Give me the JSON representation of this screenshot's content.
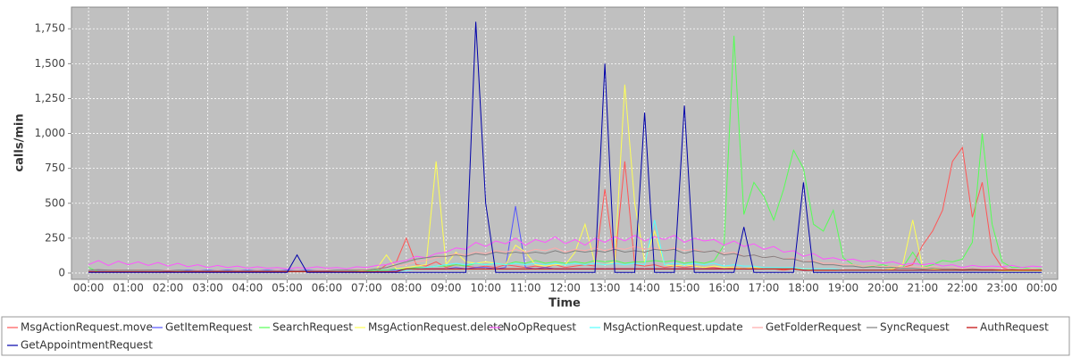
{
  "chart_data": {
    "type": "line",
    "x_label": "Time",
    "y_label": "calls/min",
    "xlim": [
      -0.43,
      24.4
    ],
    "xticks": [
      {
        "value": 0,
        "label": "00:00"
      },
      {
        "value": 1,
        "label": "01:00"
      },
      {
        "value": 2,
        "label": "02:00"
      },
      {
        "value": 3,
        "label": "03:00"
      },
      {
        "value": 4,
        "label": "04:00"
      },
      {
        "value": 5,
        "label": "05:00"
      },
      {
        "value": 6,
        "label": "06:00"
      },
      {
        "value": 7,
        "label": "07:00"
      },
      {
        "value": 8,
        "label": "08:00"
      },
      {
        "value": 9,
        "label": "09:00"
      },
      {
        "value": 10,
        "label": "10:00"
      },
      {
        "value": 11,
        "label": "11:00"
      },
      {
        "value": 12,
        "label": "12:00"
      },
      {
        "value": 13,
        "label": "13:00"
      },
      {
        "value": 14,
        "label": "14:00"
      },
      {
        "value": 15,
        "label": "15:00"
      },
      {
        "value": 16,
        "label": "16:00"
      },
      {
        "value": 17,
        "label": "17:00"
      },
      {
        "value": 18,
        "label": "18:00"
      },
      {
        "value": 19,
        "label": "19:00"
      },
      {
        "value": 20,
        "label": "20:00"
      },
      {
        "value": 21,
        "label": "21:00"
      },
      {
        "value": 22,
        "label": "22:00"
      },
      {
        "value": 23,
        "label": "23:00"
      },
      {
        "value": 24,
        "label": "00:00"
      }
    ],
    "ylim": [
      -45,
      1905
    ],
    "yticks": [
      0,
      250,
      500,
      750,
      {
        "value": 1000,
        "label": "1,000"
      },
      {
        "value": 1250,
        "label": "1,250"
      },
      {
        "value": 1500,
        "label": "1,500"
      },
      {
        "value": 1750,
        "label": "1,750"
      }
    ],
    "grid": true,
    "x": [
      0,
      0.25,
      0.5,
      0.75,
      1,
      1.25,
      1.5,
      1.75,
      2,
      2.25,
      2.5,
      2.75,
      3,
      3.25,
      3.5,
      3.75,
      4,
      4.25,
      4.5,
      4.75,
      5,
      5.25,
      5.5,
      5.75,
      6,
      6.25,
      6.5,
      6.75,
      7,
      7.25,
      7.5,
      7.75,
      8,
      8.25,
      8.5,
      8.75,
      9,
      9.25,
      9.5,
      9.75,
      10,
      10.25,
      10.5,
      10.75,
      11,
      11.25,
      11.5,
      11.75,
      12,
      12.25,
      12.5,
      12.75,
      13,
      13.25,
      13.5,
      13.75,
      14,
      14.25,
      14.5,
      14.75,
      15,
      15.25,
      15.5,
      15.75,
      16,
      16.25,
      16.5,
      16.75,
      17,
      17.25,
      17.5,
      17.75,
      18,
      18.25,
      18.5,
      18.75,
      19,
      19.25,
      19.5,
      19.75,
      20,
      20.25,
      20.5,
      20.75,
      21,
      21.25,
      21.5,
      21.75,
      22,
      22.25,
      22.5,
      22.75,
      23,
      23.25,
      23.5,
      23.75,
      24
    ],
    "series": [
      {
        "name": "MsgActionRequest.move",
        "color": "#ff5555",
        "values": [
          10,
          10,
          10,
          10,
          10,
          10,
          10,
          10,
          10,
          10,
          10,
          10,
          10,
          10,
          10,
          10,
          10,
          10,
          10,
          10,
          10,
          10,
          10,
          10,
          10,
          10,
          10,
          10,
          10,
          10,
          60,
          80,
          250,
          60,
          50,
          80,
          40,
          60,
          50,
          40,
          50,
          40,
          60,
          50,
          40,
          50,
          40,
          60,
          40,
          50,
          60,
          50,
          600,
          80,
          800,
          60,
          50,
          60,
          40,
          50,
          40,
          50,
          40,
          40,
          30,
          40,
          30,
          30,
          30,
          30,
          20,
          30,
          20,
          20,
          20,
          20,
          20,
          20,
          20,
          20,
          20,
          30,
          40,
          60,
          200,
          300,
          450,
          800,
          900,
          400,
          650,
          150,
          40,
          20,
          20,
          20,
          20
        ]
      },
      {
        "name": "GetItemRequest",
        "color": "#5555ff",
        "values": [
          20,
          20,
          20,
          20,
          20,
          20,
          20,
          20,
          20,
          20,
          20,
          20,
          20,
          20,
          20,
          20,
          20,
          20,
          20,
          20,
          20,
          20,
          20,
          20,
          20,
          20,
          20,
          20,
          20,
          20,
          20,
          20,
          30,
          30,
          30,
          30,
          30,
          40,
          30,
          40,
          40,
          30,
          40,
          480,
          40,
          30,
          40,
          30,
          30,
          30,
          30,
          30,
          30,
          30,
          30,
          30,
          30,
          30,
          30,
          30,
          30,
          30,
          30,
          30,
          30,
          30,
          30,
          30,
          30,
          30,
          30,
          30,
          20,
          20,
          20,
          20,
          20,
          20,
          20,
          20,
          20,
          20,
          20,
          20,
          20,
          20,
          20,
          20,
          20,
          20,
          20,
          20,
          20,
          20,
          20,
          20,
          20
        ]
      },
      {
        "name": "SearchRequest",
        "color": "#55ff55",
        "values": [
          40,
          10,
          10,
          10,
          10,
          10,
          10,
          10,
          10,
          10,
          10,
          10,
          10,
          10,
          10,
          10,
          10,
          10,
          10,
          10,
          10,
          10,
          10,
          10,
          10,
          10,
          10,
          15,
          15,
          20,
          20,
          30,
          30,
          40,
          40,
          50,
          50,
          60,
          50,
          70,
          60,
          70,
          60,
          80,
          70,
          90,
          70,
          80,
          70,
          80,
          70,
          90,
          80,
          90,
          70,
          80,
          80,
          90,
          80,
          90,
          70,
          80,
          70,
          90,
          200,
          1700,
          420,
          650,
          550,
          380,
          600,
          880,
          750,
          350,
          300,
          450,
          110,
          60,
          50,
          50,
          60,
          40,
          40,
          150,
          40,
          60,
          90,
          80,
          100,
          220,
          1000,
          350,
          80,
          40,
          40,
          30,
          30
        ]
      },
      {
        "name": "MsgActionRequest.delete",
        "color": "#ffff55",
        "values": [
          10,
          10,
          10,
          10,
          10,
          10,
          10,
          10,
          10,
          10,
          10,
          10,
          10,
          10,
          10,
          10,
          10,
          10,
          10,
          10,
          10,
          10,
          10,
          10,
          10,
          10,
          10,
          10,
          20,
          30,
          130,
          30,
          40,
          50,
          60,
          800,
          60,
          150,
          80,
          70,
          80,
          70,
          60,
          200,
          150,
          60,
          50,
          60,
          60,
          150,
          350,
          70,
          60,
          80,
          1350,
          500,
          80,
          300,
          60,
          50,
          60,
          50,
          40,
          50,
          40,
          40,
          30,
          40,
          30,
          30,
          30,
          30,
          30,
          20,
          20,
          20,
          20,
          20,
          20,
          20,
          20,
          30,
          60,
          380,
          40,
          30,
          20,
          20,
          20,
          20,
          20,
          20,
          15,
          15,
          15,
          15,
          15
        ]
      },
      {
        "name": "NoOpRequest",
        "color": "#ff55ff",
        "values": [
          60,
          90,
          55,
          85,
          60,
          80,
          55,
          75,
          50,
          70,
          45,
          60,
          40,
          55,
          40,
          50,
          35,
          45,
          35,
          40,
          30,
          40,
          35,
          45,
          35,
          40,
          30,
          45,
          40,
          55,
          60,
          80,
          90,
          120,
          110,
          140,
          150,
          180,
          170,
          220,
          190,
          230,
          210,
          250,
          200,
          240,
          220,
          260,
          210,
          240,
          200,
          250,
          220,
          260,
          230,
          270,
          230,
          260,
          240,
          270,
          220,
          250,
          230,
          240,
          200,
          230,
          190,
          210,
          170,
          190,
          150,
          160,
          120,
          140,
          100,
          110,
          90,
          100,
          80,
          90,
          70,
          80,
          60,
          70,
          60,
          70,
          50,
          60,
          40,
          55,
          45,
          50,
          45,
          55,
          40,
          50,
          45
        ]
      },
      {
        "name": "MsgActionRequest.update",
        "color": "#55ffff",
        "values": [
          10,
          10,
          10,
          10,
          10,
          10,
          10,
          10,
          10,
          10,
          10,
          10,
          10,
          10,
          10,
          10,
          10,
          10,
          10,
          10,
          10,
          10,
          10,
          10,
          10,
          10,
          10,
          10,
          10,
          10,
          10,
          10,
          20,
          30,
          40,
          50,
          60,
          70,
          60,
          70,
          60,
          70,
          60,
          70,
          60,
          70,
          60,
          70,
          60,
          70,
          60,
          70,
          60,
          70,
          60,
          70,
          60,
          380,
          60,
          70,
          60,
          70,
          60,
          70,
          50,
          60,
          50,
          50,
          40,
          40,
          40,
          40,
          30,
          30,
          30,
          30,
          20,
          20,
          20,
          20,
          20,
          20,
          20,
          20,
          20,
          20,
          20,
          20,
          20,
          20,
          20,
          20,
          20,
          20,
          20,
          20,
          20
        ]
      },
      {
        "name": "GetFolderRequest",
        "color": "#ffaaaa",
        "values": [
          20,
          25,
          20,
          25,
          20,
          25,
          20,
          20,
          20,
          20,
          15,
          20,
          15,
          20,
          15,
          20,
          15,
          20,
          15,
          20,
          15,
          20,
          15,
          20,
          20,
          20,
          20,
          25,
          25,
          30,
          40,
          50,
          60,
          80,
          90,
          110,
          120,
          140,
          130,
          150,
          140,
          160,
          150,
          170,
          150,
          170,
          160,
          180,
          150,
          170,
          160,
          180,
          160,
          180,
          170,
          190,
          170,
          180,
          160,
          180,
          160,
          170,
          150,
          160,
          140,
          150,
          120,
          130,
          110,
          120,
          100,
          110,
          80,
          90,
          70,
          70,
          60,
          60,
          50,
          55,
          45,
          50,
          40,
          45,
          40,
          45,
          35,
          40,
          30,
          35,
          30,
          30,
          25,
          30,
          25,
          30,
          25
        ]
      },
      {
        "name": "SyncRequest",
        "color": "#808080",
        "values": [
          20,
          25,
          20,
          20,
          20,
          20,
          20,
          20,
          15,
          20,
          15,
          15,
          15,
          15,
          15,
          15,
          15,
          15,
          15,
          15,
          15,
          15,
          15,
          15,
          15,
          20,
          20,
          20,
          20,
          30,
          40,
          60,
          80,
          100,
          110,
          120,
          120,
          130,
          120,
          140,
          130,
          150,
          140,
          150,
          140,
          150,
          140,
          160,
          140,
          160,
          150,
          160,
          150,
          170,
          150,
          160,
          150,
          170,
          160,
          170,
          140,
          160,
          150,
          160,
          130,
          140,
          120,
          130,
          110,
          120,
          100,
          100,
          80,
          80,
          60,
          60,
          50,
          50,
          40,
          45,
          40,
          40,
          35,
          35,
          30,
          35,
          30,
          30,
          25,
          30,
          25,
          25,
          20,
          25,
          20,
          20,
          20
        ]
      },
      {
        "name": "AuthRequest",
        "color": "#c00000",
        "values": [
          10,
          10,
          10,
          10,
          10,
          10,
          10,
          10,
          10,
          10,
          10,
          10,
          10,
          10,
          10,
          10,
          10,
          10,
          10,
          10,
          10,
          10,
          10,
          10,
          10,
          10,
          10,
          10,
          10,
          10,
          10,
          10,
          30,
          30,
          30,
          30,
          30,
          30,
          30,
          30,
          30,
          30,
          30,
          30,
          30,
          30,
          30,
          30,
          30,
          30,
          30,
          30,
          30,
          30,
          30,
          30,
          30,
          30,
          30,
          30,
          30,
          30,
          30,
          30,
          30,
          30,
          30,
          30,
          30,
          30,
          30,
          30,
          20,
          20,
          20,
          20,
          20,
          20,
          20,
          20,
          20,
          20,
          20,
          20,
          20,
          20,
          20,
          20,
          20,
          20,
          20,
          20,
          20,
          20,
          20,
          20,
          20
        ]
      },
      {
        "name": "GetAppointmentRequest",
        "color": "#0000aa",
        "values": [
          5,
          5,
          5,
          5,
          5,
          5,
          5,
          5,
          5,
          5,
          5,
          5,
          5,
          5,
          5,
          5,
          5,
          5,
          5,
          5,
          5,
          130,
          5,
          5,
          5,
          5,
          5,
          5,
          5,
          5,
          5,
          5,
          5,
          5,
          5,
          5,
          5,
          5,
          5,
          1800,
          500,
          5,
          5,
          5,
          5,
          5,
          5,
          5,
          5,
          5,
          5,
          5,
          1500,
          5,
          5,
          5,
          1150,
          5,
          5,
          5,
          1200,
          5,
          5,
          5,
          5,
          5,
          330,
          5,
          5,
          5,
          5,
          5,
          650,
          5,
          5,
          5,
          5,
          5,
          5,
          5,
          5,
          5,
          5,
          5,
          5,
          5,
          5,
          5,
          5,
          5,
          5,
          5,
          5,
          5,
          5,
          5,
          5
        ]
      }
    ]
  }
}
